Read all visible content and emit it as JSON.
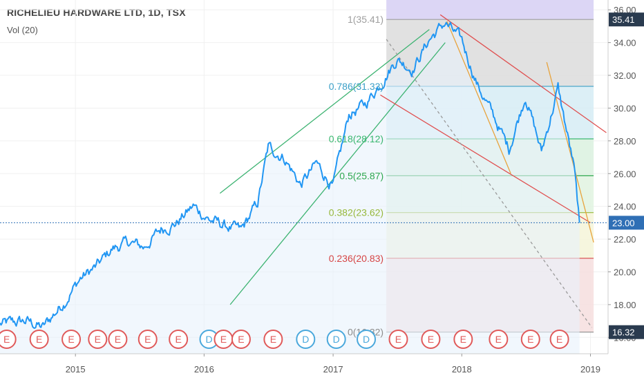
{
  "header": {
    "title": "RICHELIEU HARDWARE LTD, 1D, TSX",
    "volume_indicator": "Vol (20)"
  },
  "chart_data": {
    "type": "line",
    "series": [
      {
        "x": [
          "2014-06-01",
          "2014-08-15",
          "2014-10-01",
          "2014-12-01",
          "2015-01-15",
          "2015-03-01",
          "2015-04-15",
          "2015-06-01",
          "2015-07-15",
          "2015-09-01",
          "2015-10-15",
          "2015-12-01",
          "2016-01-15",
          "2016-03-01",
          "2016-04-15",
          "2016-06-01",
          "2016-07-01",
          "2016-08-15",
          "2016-10-01",
          "2016-11-15",
          "2017-01-01",
          "2017-02-15",
          "2017-04-01",
          "2017-05-15",
          "2017-07-01",
          "2017-08-15",
          "2017-10-01",
          "2017-11-15",
          "2018-01-01",
          "2018-02-15",
          "2018-04-01",
          "2018-05-15",
          "2018-07-01",
          "2018-08-15",
          "2018-10-01",
          "2018-11-15",
          "2018-12-01"
        ],
        "values": [
          16.8,
          17.0,
          16.6,
          18.2,
          19.6,
          20.3,
          21.4,
          21.8,
          21.5,
          22.6,
          23.0,
          24.0,
          23.2,
          22.8,
          22.5,
          24.2,
          27.6,
          27.0,
          25.3,
          26.6,
          25.2,
          29.6,
          30.2,
          31.5,
          33.0,
          32.4,
          34.2,
          35.2,
          34.1,
          31.4,
          29.5,
          27.5,
          30.8,
          27.3,
          31.2,
          26.4,
          23.0
        ]
      }
    ],
    "xaxis_labels": [
      "2015",
      "2016",
      "2017",
      "2018",
      "2019"
    ],
    "yaxis_labels": [
      "16.00",
      "18.00",
      "20.00",
      "22.00",
      "24.00",
      "26.00",
      "28.00",
      "30.00",
      "32.00",
      "34.00",
      "36.00"
    ],
    "ylim": [
      15.0,
      36.6
    ],
    "last_price_label": "23.00",
    "fib_high_label": "35.41",
    "fib_low_label": "16.32",
    "fib_levels": [
      {
        "label": "1(35.41)",
        "value": 35.41,
        "color": "#9e9e9e"
      },
      {
        "label": "0.786(31.33)",
        "value": 31.33,
        "color": "#3a9fc7"
      },
      {
        "label": "0.618(28.12)",
        "value": 28.12,
        "color": "#39b76f"
      },
      {
        "label": "0.5(25.87)",
        "value": 25.87,
        "color": "#2fa84f"
      },
      {
        "label": "0.382(23.62)",
        "value": 23.62,
        "color": "#97b83a"
      },
      {
        "label": "0.236(20.83)",
        "value": 20.83,
        "color": "#d64545"
      },
      {
        "label": "0(16.32)",
        "value": 16.32,
        "color": "#8c8c8c"
      }
    ],
    "fib_range_x": [
      "2017-06-01",
      "2019-01-10"
    ],
    "events": [
      {
        "x": "2014-06-20",
        "label": "E"
      },
      {
        "x": "2014-09-20",
        "label": "E"
      },
      {
        "x": "2014-12-20",
        "label": "E"
      },
      {
        "x": "2015-03-05",
        "label": "E"
      },
      {
        "x": "2015-05-01",
        "label": "E"
      },
      {
        "x": "2015-07-25",
        "label": "E"
      },
      {
        "x": "2015-10-20",
        "label": "E"
      },
      {
        "x": "2016-01-15",
        "label": "D"
      },
      {
        "x": "2016-02-25",
        "label": "E"
      },
      {
        "x": "2016-04-15",
        "label": "E"
      },
      {
        "x": "2016-07-15",
        "label": "E"
      },
      {
        "x": "2016-10-15",
        "label": "D"
      },
      {
        "x": "2017-01-10",
        "label": "D"
      },
      {
        "x": "2017-04-05",
        "label": "D"
      },
      {
        "x": "2017-07-05",
        "label": "E"
      },
      {
        "x": "2017-10-05",
        "label": "E"
      },
      {
        "x": "2018-01-05",
        "label": "E"
      },
      {
        "x": "2018-04-15",
        "label": "E"
      },
      {
        "x": "2018-07-15",
        "label": "E"
      },
      {
        "x": "2018-10-05",
        "label": "E"
      }
    ],
    "trendlines": [
      {
        "x": [
          "2016-02-15",
          "2017-10-01"
        ],
        "y": [
          24.8,
          34.8
        ],
        "color": "#3cb371"
      },
      {
        "x": [
          "2016-03-15",
          "2017-11-15"
        ],
        "y": [
          18.0,
          34.0
        ],
        "color": "#3cb371"
      },
      {
        "x": [
          "2017-05-15",
          "2019-01-01"
        ],
        "y": [
          30.8,
          23.0
        ],
        "color": "#e05050"
      },
      {
        "x": [
          "2017-11-01",
          "2019-02-15"
        ],
        "y": [
          35.7,
          28.5
        ],
        "color": "#e05050"
      },
      {
        "x": [
          "2017-11-20",
          "2018-05-20"
        ],
        "y": [
          35.3,
          26.0
        ],
        "color": "#e8a33c"
      },
      {
        "x": [
          "2018-08-30",
          "2019-01-10"
        ],
        "y": [
          32.8,
          21.8
        ],
        "color": "#e8a33c"
      },
      {
        "x": [
          "2017-06-01",
          "2019-01-05"
        ],
        "y": [
          34.2,
          16.6
        ],
        "color": "#999999"
      }
    ],
    "colors": {
      "price": "#2196f3",
      "last_price_badge": "#2f6fb5",
      "grid": "#f0f0f0"
    }
  }
}
